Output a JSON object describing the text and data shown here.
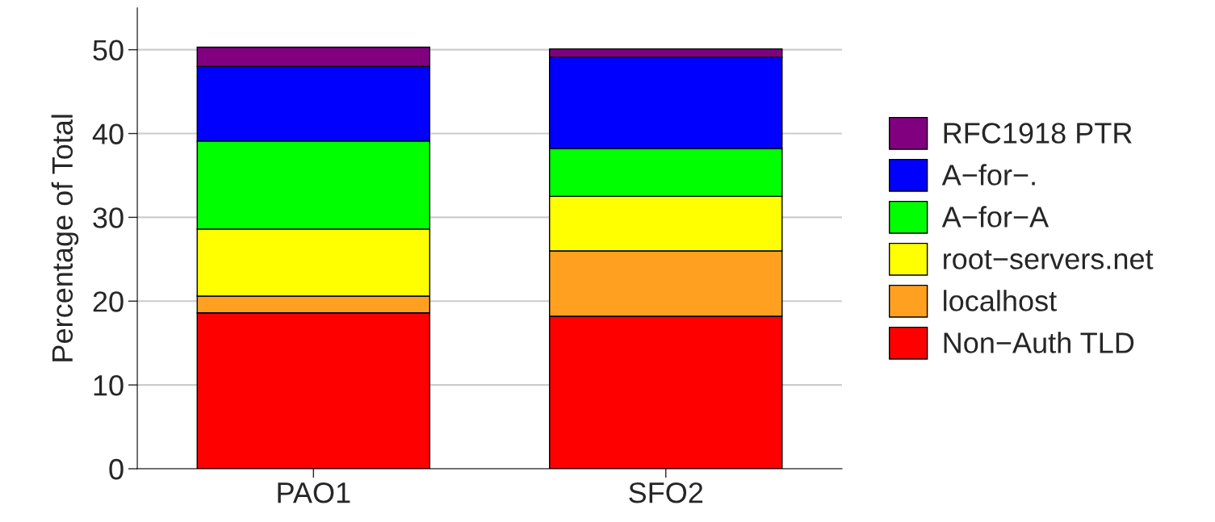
{
  "chart_data": {
    "type": "bar",
    "stacked": true,
    "ylabel": "Percentage of Total",
    "categories": [
      "PAO1",
      "SFO2"
    ],
    "series": [
      {
        "name": "Non−Auth TLD",
        "color": "#ff0000",
        "values": [
          18.6,
          18.2
        ]
      },
      {
        "name": "localhost",
        "color": "#ffa020",
        "values": [
          2.0,
          7.8
        ]
      },
      {
        "name": "root−servers.net",
        "color": "#ffff00",
        "values": [
          8.0,
          6.5
        ]
      },
      {
        "name": "A−for−A",
        "color": "#00ff00",
        "values": [
          10.5,
          5.7
        ]
      },
      {
        "name": "A−for−.",
        "color": "#0000ff",
        "values": [
          8.9,
          10.9
        ]
      },
      {
        "name": "RFC1918 PTR",
        "color": "#800080",
        "values": [
          2.3,
          1.0
        ]
      }
    ],
    "ylim": [
      0,
      55
    ],
    "yticks": [
      0,
      10,
      20,
      30,
      40,
      50
    ],
    "grid": "y",
    "legend": "right"
  }
}
